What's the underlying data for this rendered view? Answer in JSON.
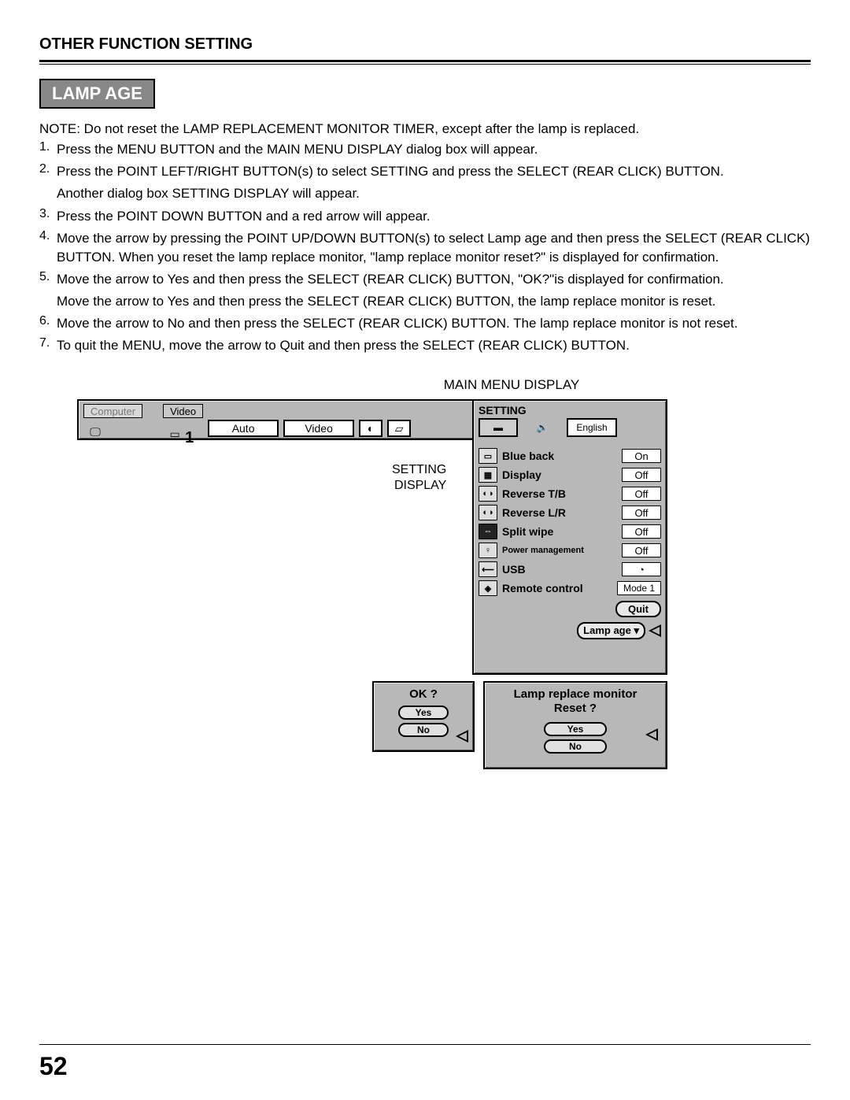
{
  "header": {
    "title": "OTHER FUNCTION SETTING"
  },
  "section": {
    "title": "LAMP AGE"
  },
  "note": "NOTE:  Do not reset the LAMP REPLACEMENT MONITOR TIMER, except after the lamp is replaced.",
  "steps": [
    {
      "n": "1.",
      "lines": [
        "Press the MENU BUTTON and the MAIN MENU DISPLAY dialog box will appear."
      ]
    },
    {
      "n": "2.",
      "lines": [
        "Press the POINT LEFT/RIGHT BUTTON(s) to select SETTING and press the SELECT (REAR CLICK) BUTTON.",
        "Another dialog box SETTING DISPLAY will appear."
      ]
    },
    {
      "n": "3.",
      "lines": [
        "Press the POINT DOWN BUTTON and a red arrow will appear."
      ]
    },
    {
      "n": "4.",
      "lines": [
        "Move the arrow by pressing the POINT UP/DOWN BUTTON(s) to select Lamp age and then press the SELECT (REAR CLICK) BUTTON. When you reset the lamp replace monitor, \"lamp replace monitor reset?\" is displayed for confirmation."
      ]
    },
    {
      "n": "5.",
      "lines": [
        "Move the arrow to Yes and then press the SELECT (REAR CLICK) BUTTON, \"OK?\"is displayed for confirmation.",
        "Move the arrow to Yes and then press the SELECT (REAR CLICK) BUTTON, the lamp replace monitor is reset."
      ]
    },
    {
      "n": "6.",
      "lines": [
        "Move the arrow to No and then press the SELECT (REAR CLICK) BUTTON. The lamp replace monitor is not reset."
      ]
    },
    {
      "n": "7.",
      "lines": [
        "To quit the MENU, move the arrow to Quit and then press the SELECT (REAR CLICK) BUTTON."
      ]
    }
  ],
  "diagram_title": "MAIN MENU DISPLAY",
  "menu": {
    "tabs": [
      "Computer",
      "Video"
    ],
    "num": "1",
    "buttons": [
      "Auto",
      "Video"
    ]
  },
  "setting": {
    "header": "SETTING",
    "lang": "English",
    "display_label_l1": "SETTING",
    "display_label_l2": "DISPLAY",
    "rows": [
      {
        "icon": "▭",
        "label": "Blue back",
        "val": "On"
      },
      {
        "icon": "▦",
        "label": "Display",
        "val": "Off"
      },
      {
        "icon": "◐◑",
        "label": "Reverse T/B",
        "val": "Off"
      },
      {
        "icon": "◐◑",
        "label": "Reverse L/R",
        "val": "Off"
      },
      {
        "icon": "⇔",
        "dark": true,
        "label": "Split wipe",
        "val": "Off"
      },
      {
        "icon": "♀",
        "label": "Power management",
        "val": "Off",
        "small": true
      },
      {
        "icon": "⟵",
        "label": "USB",
        "val": "◔"
      },
      {
        "icon": "◈",
        "label": "Remote control",
        "val": "Mode 1",
        "mode": true
      }
    ],
    "quit": "Quit",
    "lamp_age": "Lamp age ▾"
  },
  "ok_box": {
    "title": "OK ?",
    "yes": "Yes",
    "no": "No"
  },
  "reset_box": {
    "title_l1": "Lamp replace monitor",
    "title_l2": "Reset ?",
    "yes": "Yes",
    "no": "No"
  },
  "page_number": "52",
  "colors": {
    "panel_bg": "#b8b8b8",
    "white": "#ffffff",
    "black": "#000000"
  }
}
